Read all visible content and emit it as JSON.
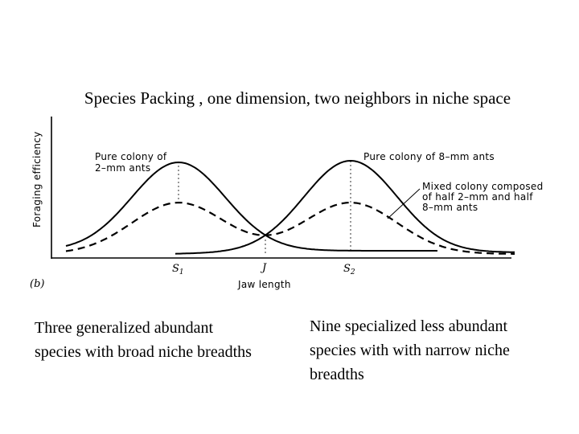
{
  "title": "Species Packing , one dimension, two neighbors in niche space",
  "figure": {
    "y_axis_label": "Foraging efficiency",
    "x_axis_label": "Jaw length",
    "panel_label": "(b)",
    "tick_s1": "S",
    "tick_s1_sub": "1",
    "tick_j": "J",
    "tick_s2": "S",
    "tick_s2_sub": "2",
    "label_pure_2mm_line1": "Pure colony of",
    "label_pure_2mm_line2": "2–mm ants",
    "label_pure_8mm": "Pure colony of 8–mm ants",
    "label_mixed_line1": "Mixed colony composed",
    "label_mixed_line2": "of half 2–mm and half",
    "label_mixed_line3": "8–mm ants",
    "curves": [
      {
        "name": "Pure colony of 2–mm ants",
        "style": "solid",
        "peak_relative": 1.0
      },
      {
        "name": "Pure colony of 8–mm ants",
        "style": "solid",
        "peak_relative": 1.0
      },
      {
        "name": "Mixed colony composed of half 2–mm and half 8–mm ants",
        "style": "dashed",
        "peak_relative": 0.52
      }
    ],
    "line_color": "#000000"
  },
  "captions": {
    "left_line1": "Three generalized abundant",
    "left_line2": "species with broad niche breadths",
    "right_line1": "Nine specialized less abundant",
    "right_line2": "species with with narrow niche",
    "right_line3": "breadths"
  }
}
